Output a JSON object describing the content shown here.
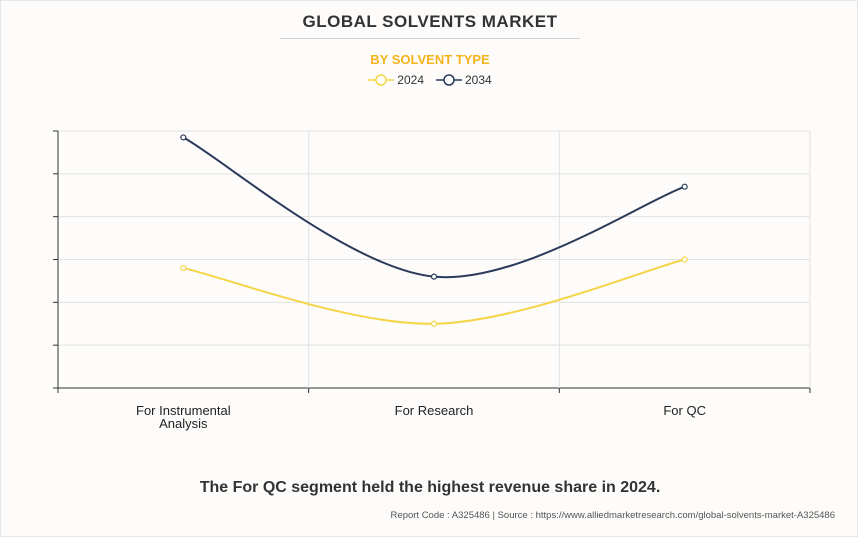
{
  "title": "GLOBAL SOLVENTS MARKET",
  "subtitle": "BY SOLVENT TYPE",
  "caption": "The For QC segment held the highest revenue share in 2024.",
  "footer": "Report Code : A325486  |  Source : https://www.alliedmarketresearch.com/global-solvents-market-A325486",
  "colors": {
    "series_2024": "#f5d547",
    "series_2034": "#2b3a5c",
    "subtitle": "#f5b31c",
    "grid": "#e2e2e2"
  },
  "chart_data": {
    "type": "line",
    "categories": [
      [
        "For Instrumental",
        "Analysis"
      ],
      [
        "For Research"
      ],
      [
        "For QC"
      ]
    ],
    "series": [
      {
        "name": "2024",
        "color": "#f5d547",
        "values": [
          2.8,
          1.5,
          3.0
        ]
      },
      {
        "name": "2034",
        "color": "#2b3a5c",
        "values": [
          5.85,
          2.6,
          4.7
        ]
      }
    ],
    "ylim": [
      0,
      6
    ],
    "y_ticks": [
      0,
      1,
      2,
      3,
      4,
      5,
      6
    ],
    "ytick_labels_shown": false,
    "smooth": true,
    "grid": true,
    "legend_position": "top-center"
  }
}
